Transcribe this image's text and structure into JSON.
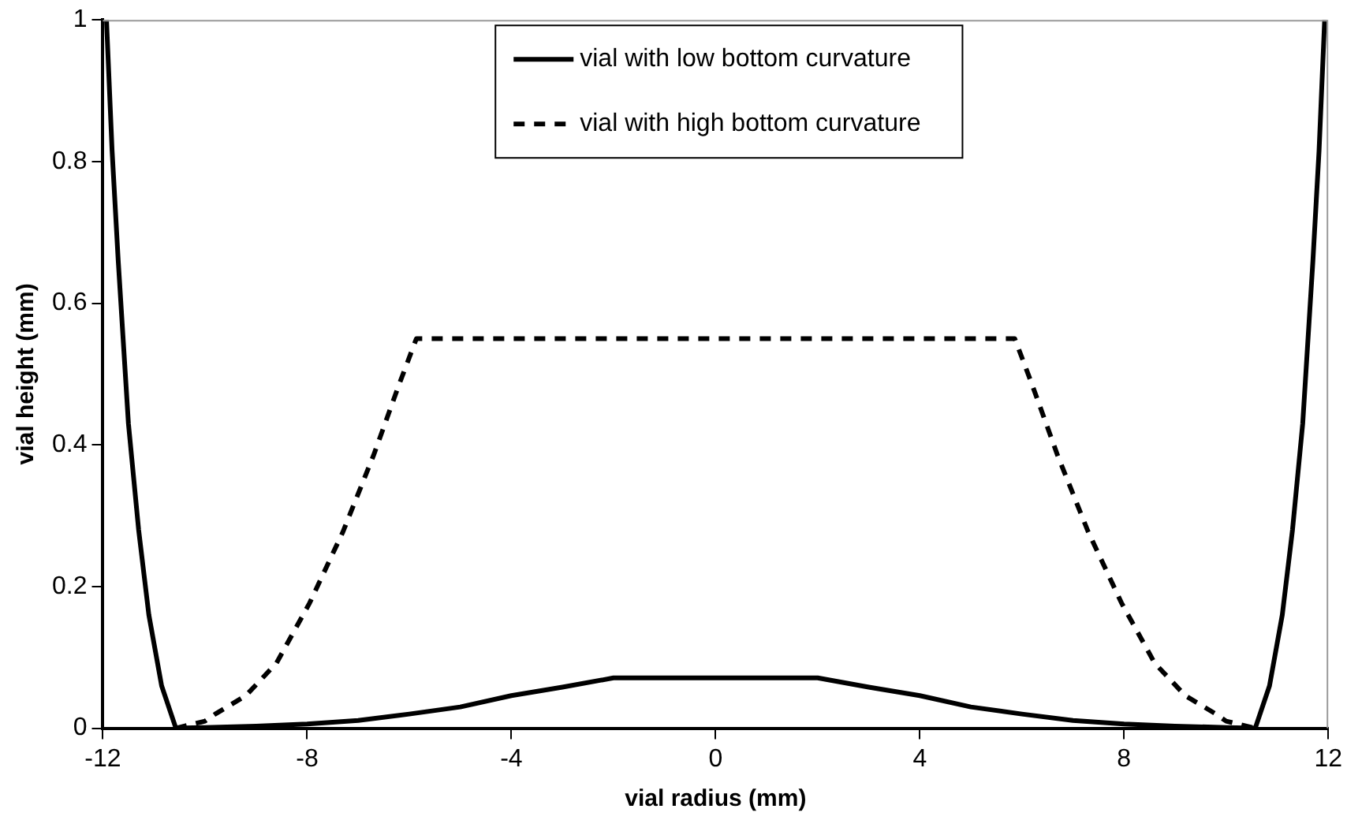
{
  "chart_data": {
    "type": "line",
    "xlabel": "vial radius (mm)",
    "ylabel": "vial height (mm)",
    "xlim": [
      -12,
      12
    ],
    "xticks": [
      -12,
      -8,
      -4,
      0,
      4,
      8,
      12
    ],
    "ylim": [
      0,
      1
    ],
    "yticks": [
      0,
      0.2,
      0.4,
      0.6,
      0.8,
      1
    ],
    "grid": false,
    "legend": "top",
    "marker": "none",
    "series": [
      {
        "name": "vial with low bottom curvature",
        "color": "#000000",
        "line_style": "solid",
        "x": [
          -11.93,
          -11.82,
          -11.7,
          -11.5,
          -11.3,
          -11.1,
          -10.85,
          -10.57,
          -10,
          -9,
          -8,
          -7,
          -6,
          -5,
          -4,
          -3,
          -2,
          2,
          3,
          4,
          5,
          6,
          7,
          8,
          9,
          10,
          10.57,
          10.85,
          11.1,
          11.3,
          11.5,
          11.7,
          11.82,
          11.93
        ],
        "values": [
          1,
          0.815,
          0.66,
          0.43,
          0.28,
          0.16,
          0.06,
          0,
          0.001,
          0.003,
          0.006,
          0.011,
          0.02,
          0.03,
          0.046,
          0.058,
          0.071,
          0.071,
          0.058,
          0.046,
          0.03,
          0.02,
          0.011,
          0.006,
          0.003,
          0.001,
          0,
          0.06,
          0.16,
          0.28,
          0.43,
          0.66,
          0.815,
          1
        ]
      },
      {
        "name": "vial with high bottom curvature",
        "color": "#000000",
        "line_style": "dashed",
        "x": [
          -10.57,
          -10,
          -9.8,
          -9.2,
          -8.6,
          -7.95,
          -7.3,
          -6.7,
          -6.2,
          -5.86,
          5.86,
          6.2,
          6.7,
          7.3,
          7.95,
          8.6,
          9.2,
          9.8,
          10,
          10.57
        ],
        "values": [
          0,
          0.01,
          0.02,
          0.046,
          0.092,
          0.177,
          0.277,
          0.385,
          0.485,
          0.55,
          0.55,
          0.485,
          0.385,
          0.277,
          0.177,
          0.092,
          0.046,
          0.02,
          0.01,
          0
        ]
      }
    ]
  }
}
